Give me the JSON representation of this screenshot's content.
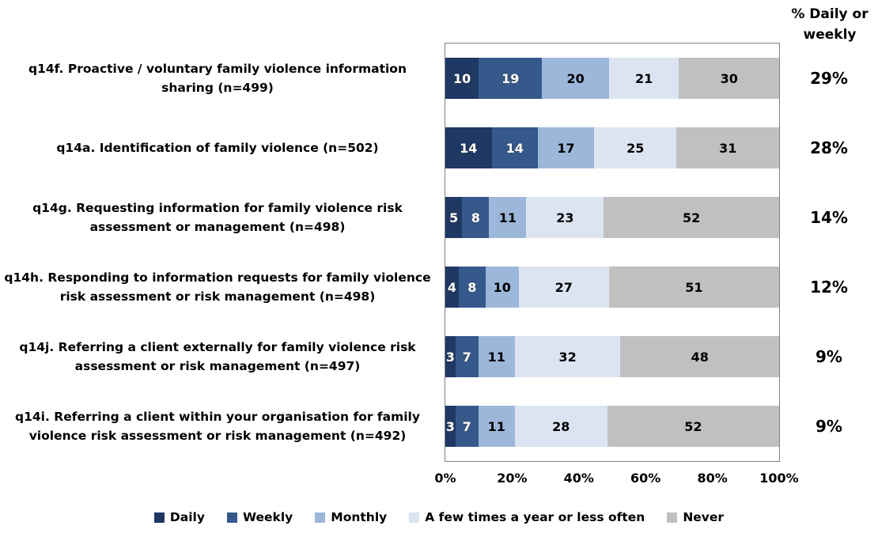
{
  "right_column_title": "% Daily or weekly",
  "chart_data": {
    "type": "bar",
    "orientation": "horizontal",
    "stacked": true,
    "normalized_to_100": true,
    "categories": [
      "q14f. Proactive / voluntary family violence information sharing (n=499)",
      "q14a. Identification of family violence (n=502)",
      "q14g. Requesting information for family violence risk assessment or management (n=498)",
      "q14h. Responding to information requests for family violence risk assessment or risk management (n=498)",
      "q14j. Referring a client externally for family violence risk assessment or risk management (n=497)",
      "q14i. Referring a client within your organisation for family violence risk assessment or risk management (n=492)"
    ],
    "series": [
      {
        "name": "Daily",
        "color": "#1F3864",
        "value_label_color": "white",
        "values": [
          10,
          14,
          5,
          4,
          3,
          3
        ]
      },
      {
        "name": "Weekly",
        "color": "#36598C",
        "value_label_color": "white",
        "values": [
          19,
          14,
          8,
          8,
          7,
          7
        ]
      },
      {
        "name": "Monthly",
        "color": "#9CB7DA",
        "value_label_color": "black",
        "values": [
          20,
          17,
          11,
          10,
          11,
          11
        ]
      },
      {
        "name": "A few times a year or less often",
        "color": "#DCE4F2",
        "value_label_color": "black",
        "values": [
          21,
          25,
          23,
          27,
          32,
          28
        ]
      },
      {
        "name": "Never",
        "color": "#C0C0C0",
        "value_label_color": "black",
        "values": [
          30,
          31,
          52,
          51,
          48,
          52
        ]
      }
    ],
    "daily_or_weekly_percent": [
      "29%",
      "28%",
      "14%",
      "12%",
      "9%",
      "9%"
    ],
    "x_ticks": [
      "0%",
      "20%",
      "40%",
      "60%",
      "80%",
      "100%"
    ],
    "xlim": [
      0,
      100
    ],
    "grid": false,
    "legend_position": "bottom",
    "title": "",
    "xlabel": "",
    "ylabel": ""
  }
}
